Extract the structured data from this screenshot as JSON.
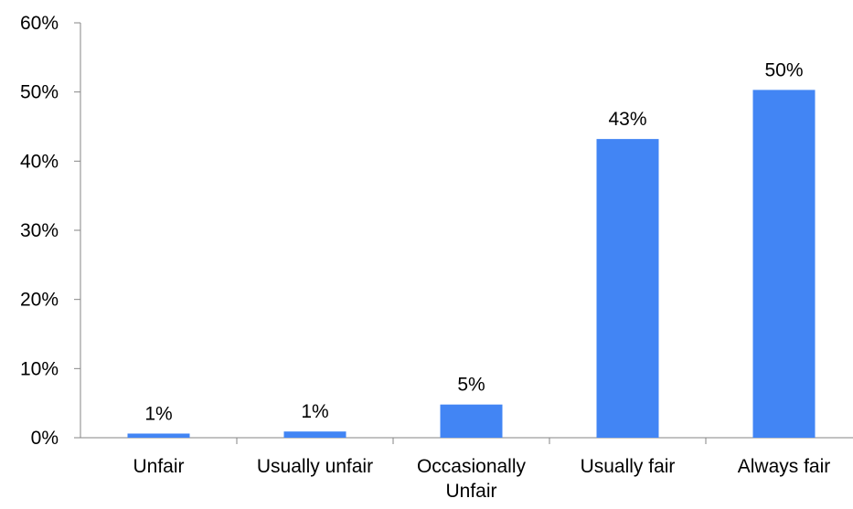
{
  "chart_data": {
    "type": "bar",
    "categories": [
      "Unfair",
      "Usually unfair",
      "Occasionally\nUnfair",
      "Usually fair",
      "Always fair"
    ],
    "values": [
      0.6,
      0.9,
      4.8,
      43.2,
      50.3
    ],
    "data_labels": [
      "1%",
      "1%",
      "5%",
      "43%",
      "50%"
    ],
    "y_ticks": [
      0,
      10,
      20,
      30,
      40,
      50,
      60
    ],
    "y_tick_labels": [
      "0%",
      "10%",
      "20%",
      "30%",
      "40%",
      "50%",
      "60%"
    ],
    "ylim": [
      0,
      60
    ],
    "title": "",
    "xlabel": "",
    "ylabel": "",
    "grid": false,
    "legend": "none",
    "bar_color": "#4285F4"
  }
}
